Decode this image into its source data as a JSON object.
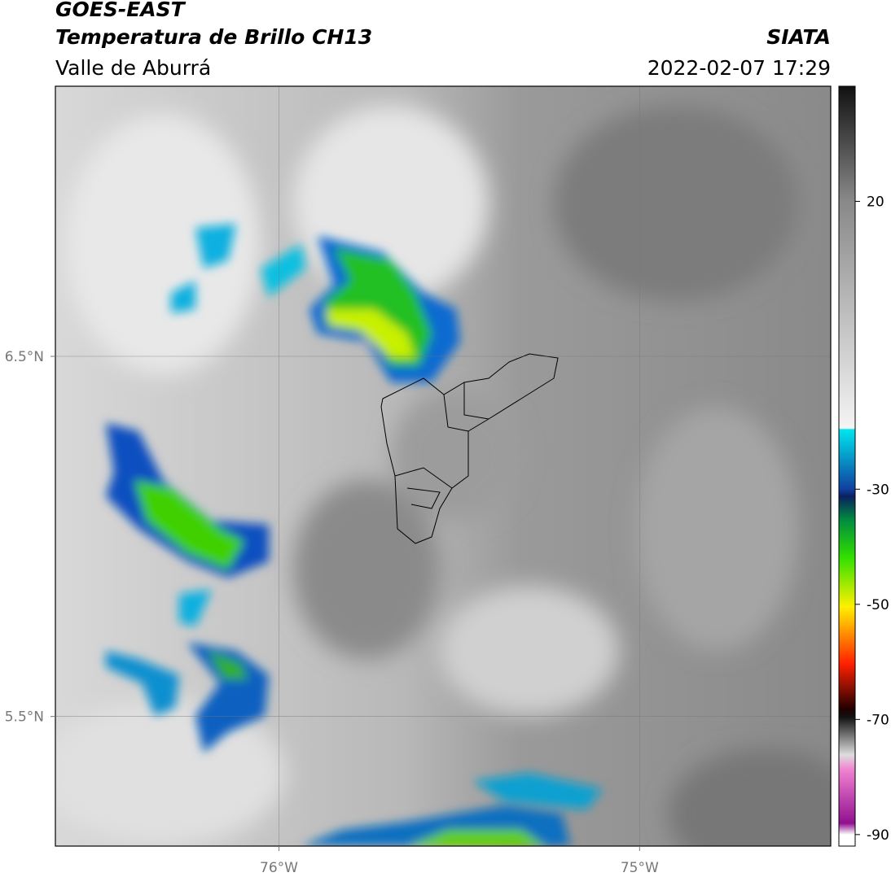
{
  "header": {
    "title": "GOES-EAST",
    "subtitle": "Temperatura de Brillo CH13",
    "region": "Valle de Aburrá",
    "source": "SIATA",
    "datetime": "2022-02-07 17:29"
  },
  "map": {
    "xlim": [
      -76.62,
      -74.47
    ],
    "ylim": [
      5.14,
      7.25
    ],
    "xticks": [
      {
        "value": -76,
        "label": "76°W"
      },
      {
        "value": -75,
        "label": "75°W"
      }
    ],
    "yticks": [
      {
        "value": 6.5,
        "label": "6.5°N"
      },
      {
        "value": 5.5,
        "label": "5.5°N"
      }
    ],
    "grid": true
  },
  "colorbar": {
    "lim": [
      -92,
      40
    ],
    "ticks": [
      20,
      -30,
      -50,
      -70,
      -90
    ]
  }
}
